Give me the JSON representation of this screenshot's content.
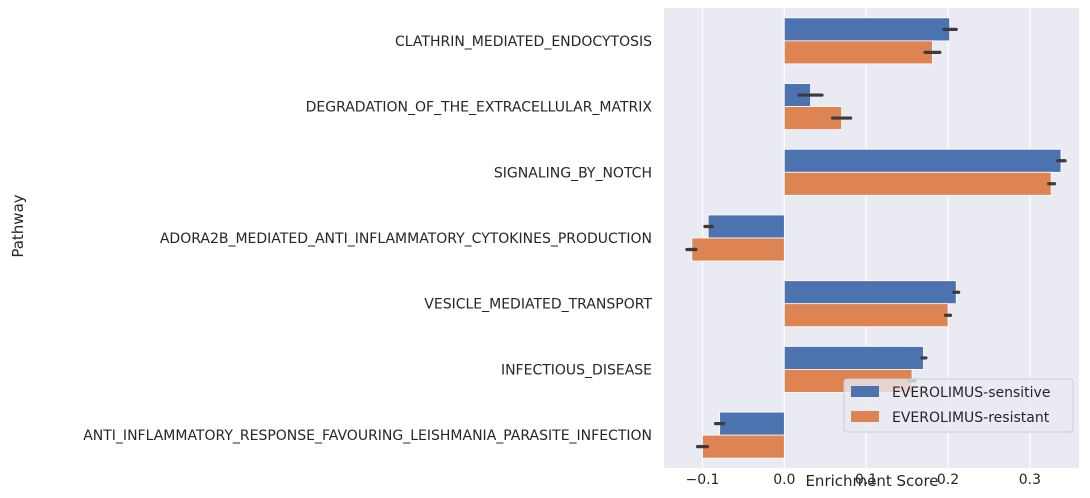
{
  "chart_data": {
    "type": "bar",
    "orientation": "horizontal",
    "categories": [
      "CLATHRIN_MEDIATED_ENDOCYTOSIS",
      "DEGRADATION_OF_THE_EXTRACELLULAR_MATRIX",
      "SIGNALING_BY_NOTCH",
      "ADORA2B_MEDIATED_ANTI_INFLAMMATORY_CYTOKINES_PRODUCTION",
      "VESICLE_MEDIATED_TRANSPORT",
      "INFECTIOUS_DISEASE",
      "ANTI_INFLAMMATORY_RESPONSE_FAVOURING_LEISHMANIA_PARASITE_INFECTION"
    ],
    "series": [
      {
        "name": "EVEROLIMUS-sensitive",
        "color": "#4c72b0",
        "values": [
          0.202,
          0.032,
          0.338,
          -0.093,
          0.21,
          0.17,
          -0.079
        ],
        "ci": [
          [
            0.195,
            0.21
          ],
          [
            0.018,
            0.046
          ],
          [
            0.334,
            0.343
          ],
          [
            -0.097,
            -0.088
          ],
          [
            0.207,
            0.213
          ],
          [
            0.168,
            0.173
          ],
          [
            -0.084,
            -0.074
          ]
        ]
      },
      {
        "name": "EVEROLIMUS-resistant",
        "color": "#dd8452",
        "values": [
          0.181,
          0.07,
          0.326,
          -0.113,
          0.2,
          0.156,
          -0.1
        ],
        "ci": [
          [
            0.172,
            0.19
          ],
          [
            0.059,
            0.081
          ],
          [
            0.323,
            0.33
          ],
          [
            -0.119,
            -0.108
          ],
          [
            0.197,
            0.203
          ],
          [
            0.152,
            0.16
          ],
          [
            -0.106,
            -0.094
          ]
        ]
      }
    ],
    "xlabel": "Enrichment Score",
    "ylabel": "Pathway",
    "xlim": [
      -0.147,
      0.36
    ],
    "xticks": [
      -0.1,
      0.0,
      0.1,
      0.2,
      0.3
    ],
    "xtick_labels": [
      "−0.1",
      "0.0",
      "0.1",
      "0.2",
      "0.3"
    ],
    "grid": true,
    "legend": "lower-right",
    "background": "#eaeaf2",
    "errorbar_color": "#3b3b3b"
  }
}
